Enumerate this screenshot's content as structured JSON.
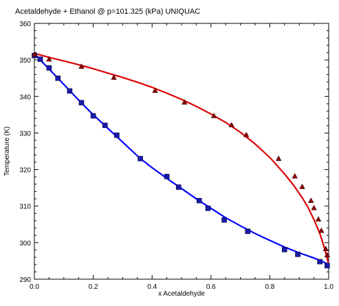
{
  "chart_data": {
    "type": "line",
    "title": "Acetaldehyde + Ethanol @ p=101.325 (kPa) UNIQUAC",
    "xlabel": "x Acetaldehyde",
    "ylabel": "Temperature (K)",
    "xlim": [
      0,
      1
    ],
    "ylim": [
      290,
      360
    ],
    "xticks": [
      {
        "value": 0,
        "label": "0.0"
      },
      {
        "value": 0.2,
        "label": "0.2"
      },
      {
        "value": 0.4,
        "label": "0.4"
      },
      {
        "value": 0.6,
        "label": "0.6"
      },
      {
        "value": 0.8,
        "label": "0.8"
      },
      {
        "value": 1,
        "label": "1.0"
      }
    ],
    "yticks": [
      {
        "value": 290,
        "label": "290"
      },
      {
        "value": 300,
        "label": "300"
      },
      {
        "value": 310,
        "label": "310"
      },
      {
        "value": 320,
        "label": "320"
      },
      {
        "value": 330,
        "label": "330"
      },
      {
        "value": 340,
        "label": "340"
      },
      {
        "value": 350,
        "label": "350"
      },
      {
        "value": 360,
        "label": "360"
      }
    ],
    "grid": false,
    "series": [
      {
        "kind": "line",
        "color": "#0000ff",
        "x": [
          0,
          0.02,
          0.05,
          0.08,
          0.12,
          0.16,
          0.2,
          0.24,
          0.28,
          0.32,
          0.36,
          0.4,
          0.45,
          0.5,
          0.55,
          0.6,
          0.65,
          0.7,
          0.75,
          0.8,
          0.85,
          0.9,
          0.95,
          0.98,
          1.0
        ],
        "y": [
          351.8,
          350.0,
          347.5,
          345.0,
          341.6,
          338.2,
          335.0,
          332.0,
          329.0,
          326.0,
          323.0,
          320.5,
          317.6,
          314.8,
          312.0,
          309.4,
          306.8,
          304.6,
          302.5,
          300.6,
          298.8,
          297.2,
          295.8,
          294.8,
          294.0
        ]
      },
      {
        "kind": "line",
        "color": "#dd0000",
        "x": [
          0,
          0.05,
          0.1,
          0.15,
          0.2,
          0.25,
          0.3,
          0.35,
          0.4,
          0.45,
          0.5,
          0.55,
          0.6,
          0.65,
          0.7,
          0.75,
          0.8,
          0.85,
          0.88,
          0.91,
          0.93,
          0.95,
          0.97,
          0.98,
          0.99,
          1.0
        ],
        "y": [
          351.8,
          350.7,
          349.7,
          348.7,
          347.6,
          346.4,
          345.2,
          343.9,
          342.5,
          340.9,
          339.2,
          337.3,
          335.2,
          332.9,
          330.2,
          327.0,
          323.3,
          318.8,
          315.8,
          312.3,
          309.6,
          306.3,
          302.5,
          300.0,
          297.2,
          294.0
        ]
      },
      {
        "kind": "scatter",
        "marker": "square",
        "color": "#1a1aaa",
        "x": [
          0.0,
          0.02,
          0.05,
          0.08,
          0.12,
          0.16,
          0.2,
          0.24,
          0.28,
          0.36,
          0.45,
          0.49,
          0.56,
          0.59,
          0.645,
          0.725,
          0.85,
          0.895,
          0.97,
          0.995
        ],
        "y": [
          351.2,
          350.2,
          347.8,
          345.0,
          341.5,
          338.3,
          334.7,
          332.1,
          329.4,
          323.0,
          318.1,
          315.2,
          311.5,
          309.4,
          306.2,
          303.1,
          298.1,
          296.8,
          294.8,
          293.7
        ]
      },
      {
        "kind": "scatter",
        "marker": "triangle",
        "color": "#880000",
        "x": [
          0.0,
          0.05,
          0.16,
          0.27,
          0.41,
          0.51,
          0.61,
          0.67,
          0.72,
          0.83,
          0.885,
          0.91,
          0.94,
          0.95,
          0.965,
          0.975,
          0.99,
          0.995
        ],
        "y": [
          351.5,
          350.2,
          348.2,
          345.2,
          341.6,
          338.4,
          334.7,
          332.2,
          329.5,
          323.0,
          318.2,
          315.3,
          311.5,
          309.5,
          306.4,
          303.3,
          298.3,
          296.6
        ]
      }
    ]
  }
}
